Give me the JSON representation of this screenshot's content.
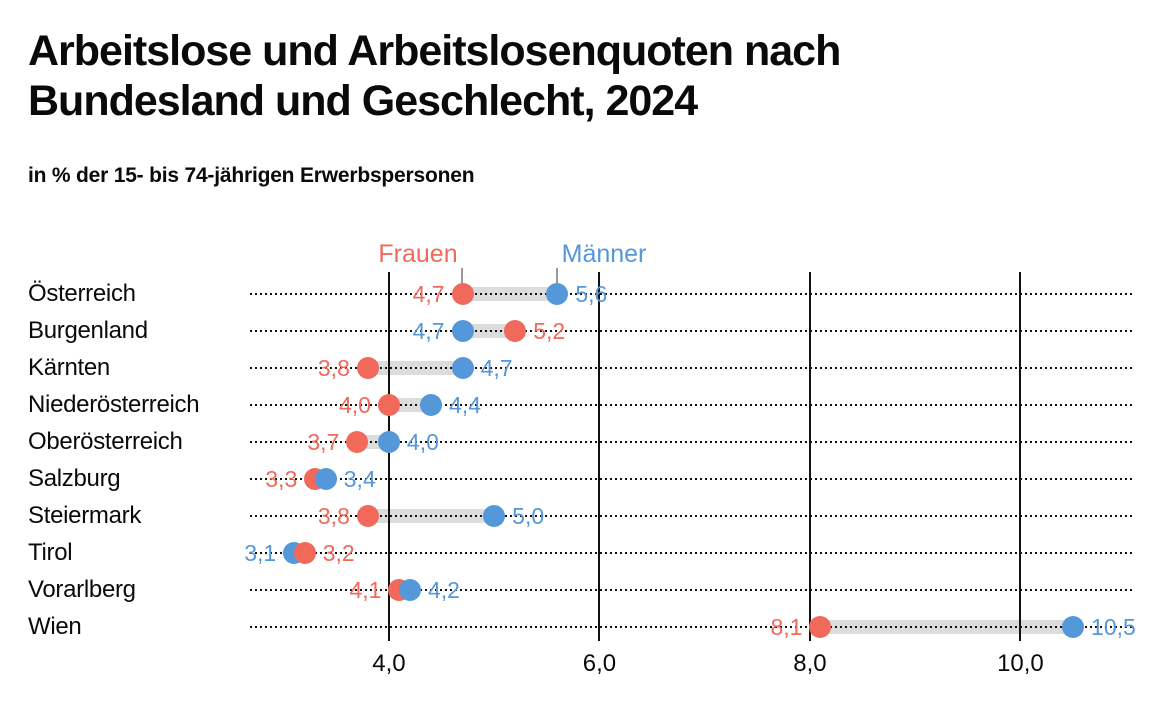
{
  "header": {
    "title_line1": "Arbeitslose und Arbeitslosenquoten nach",
    "title_line2": "Bundesland und Geschlecht, 2024",
    "subtitle": "in % der 15- bis 74-jährigen Erwerbspersonen"
  },
  "legend": {
    "frauen": "Frauen",
    "maenner": "Männer"
  },
  "colors": {
    "frauen": "#f0695b",
    "maenner": "#5598da",
    "band": "#dcdcdc",
    "grid": "#111111",
    "text": "#0a0a0a",
    "legend_tick": "#999999"
  },
  "chart_data": {
    "type": "scatter",
    "subtype": "dumbbell-dot-plot",
    "title": "Arbeitslose und Arbeitslosenquoten nach Bundesland und Geschlecht, 2024",
    "subtitle": "in % der 15- bis 74-jährigen Erwerbspersonen",
    "categories": [
      "Österreich",
      "Burgenland",
      "Kärnten",
      "Niederösterreich",
      "Oberösterreich",
      "Salzburg",
      "Steiermark",
      "Tirol",
      "Vorarlberg",
      "Wien"
    ],
    "series": [
      {
        "name": "Frauen",
        "key": "frauen",
        "color": "#f0695b",
        "values": [
          4.7,
          5.2,
          3.8,
          4.0,
          3.7,
          3.3,
          3.8,
          3.2,
          4.1,
          8.1
        ]
      },
      {
        "name": "Männer",
        "key": "maenner",
        "color": "#5598da",
        "values": [
          5.6,
          4.7,
          4.7,
          4.4,
          4.0,
          3.4,
          5.0,
          3.1,
          4.2,
          10.5
        ]
      }
    ],
    "x_ticks": [
      {
        "v": 4.0,
        "label": "4,0"
      },
      {
        "v": 6.0,
        "label": "6,0"
      },
      {
        "v": 8.0,
        "label": "8,0"
      },
      {
        "v": 10.0,
        "label": "10,0"
      }
    ],
    "x_range": [
      2.68,
      11.06
    ],
    "decimal_separator": ",",
    "legend_position": "top",
    "grid": "vertical-solid-lines-plus-dotted-row-leaders",
    "value_labels": "both-sides"
  }
}
